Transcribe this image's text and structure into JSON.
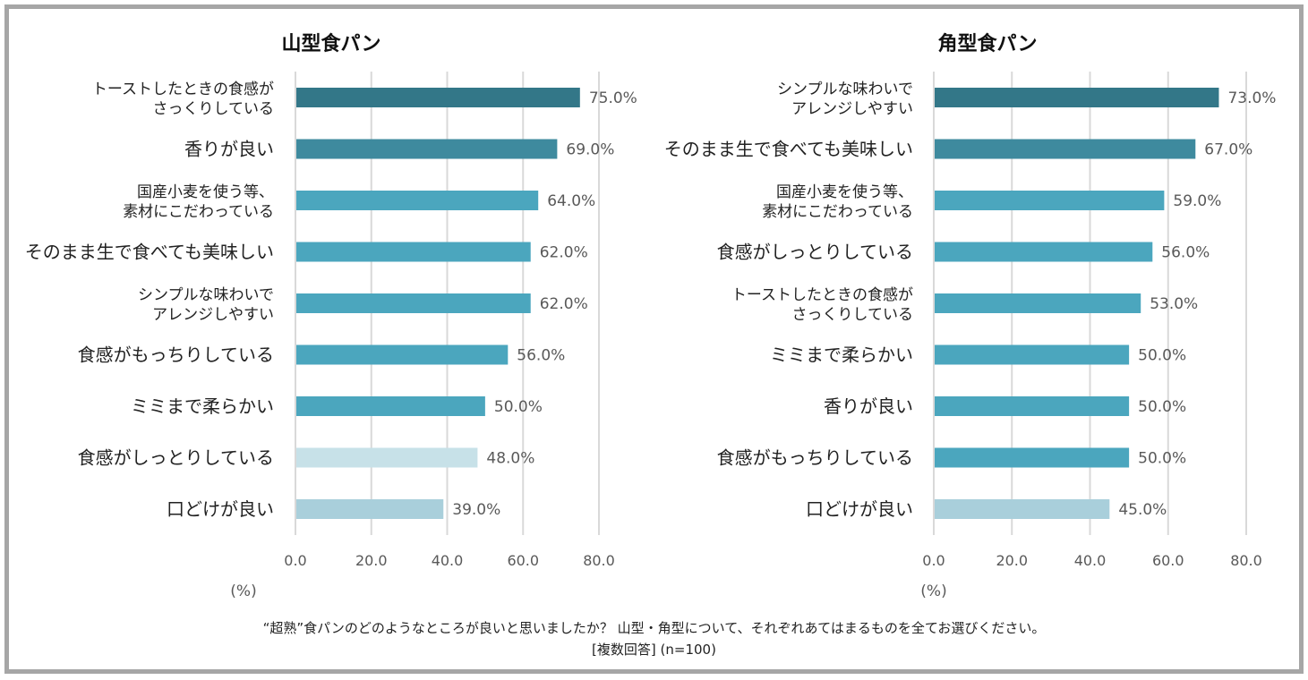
{
  "chart_data": [
    {
      "type": "bar",
      "orientation": "horizontal",
      "title": "山型食パン",
      "categories": [
        "トーストしたときの食感が\nさっくりしている",
        "香りが良い",
        "国産小麦を使う等、\n素材にこだわっている",
        "そのまま生で食べても美味しい",
        "シンプルな味わいで\nアレンジしやすい",
        "食感がもっちりしている",
        "ミミまで柔らかい",
        "食感がしっとりしている",
        "口どけが良い"
      ],
      "values": [
        75.0,
        69.0,
        64.0,
        62.0,
        62.0,
        56.0,
        50.0,
        48.0,
        39.0
      ],
      "data_labels": [
        "75.0%",
        "69.0%",
        "64.0%",
        "62.0%",
        "62.0%",
        "56.0%",
        "50.0%",
        "48.0%",
        "39.0%"
      ],
      "bar_colors": [
        "#337788",
        "#3e8a9e",
        "#4ba6be",
        "#4ba6be",
        "#4ba6be",
        "#4ba6be",
        "#4ba6be",
        "#c7e1e8",
        "#a9cfdb"
      ],
      "xlabel": "(%)",
      "ylabel": "",
      "xlim": [
        0,
        80
      ],
      "xticks": [
        "0.0",
        "20.0",
        "40.0",
        "60.0",
        "80.0"
      ],
      "grid": true
    },
    {
      "type": "bar",
      "orientation": "horizontal",
      "title": "角型食パン",
      "categories": [
        "シンプルな味わいで\nアレンジしやすい",
        "そのまま生で食べても美味しい",
        "国産小麦を使う等、\n素材にこだわっている",
        "食感がしっとりしている",
        "トーストしたときの食感が\nさっくりしている",
        "ミミまで柔らかい",
        "香りが良い",
        "食感がもっちりしている",
        "口どけが良い"
      ],
      "values": [
        73.0,
        67.0,
        59.0,
        56.0,
        53.0,
        50.0,
        50.0,
        50.0,
        45.0
      ],
      "data_labels": [
        "73.0%",
        "67.0%",
        "59.0%",
        "56.0%",
        "53.0%",
        "50.0%",
        "50.0%",
        "50.0%",
        "45.0%"
      ],
      "bar_colors": [
        "#337788",
        "#3e8a9e",
        "#4ba6be",
        "#4ba6be",
        "#4ba6be",
        "#4ba6be",
        "#4ba6be",
        "#4ba6be",
        "#a9cfdb"
      ],
      "xlabel": "(%)",
      "ylabel": "",
      "xlim": [
        0,
        80
      ],
      "xticks": [
        "0.0",
        "20.0",
        "40.0",
        "60.0",
        "80.0"
      ],
      "grid": true
    }
  ],
  "caption": {
    "question": "“超熟”食パンのどのようなところが良いと思いましたか？ 山型・角型について、それぞれあてはまるものを全てお選びください。",
    "note": "[複数回答] (n=100)"
  },
  "colors": {
    "frame": "#a6a6a6",
    "grid": "#d9d9d9",
    "tick_text": "#595959",
    "label_text": "#222222"
  }
}
